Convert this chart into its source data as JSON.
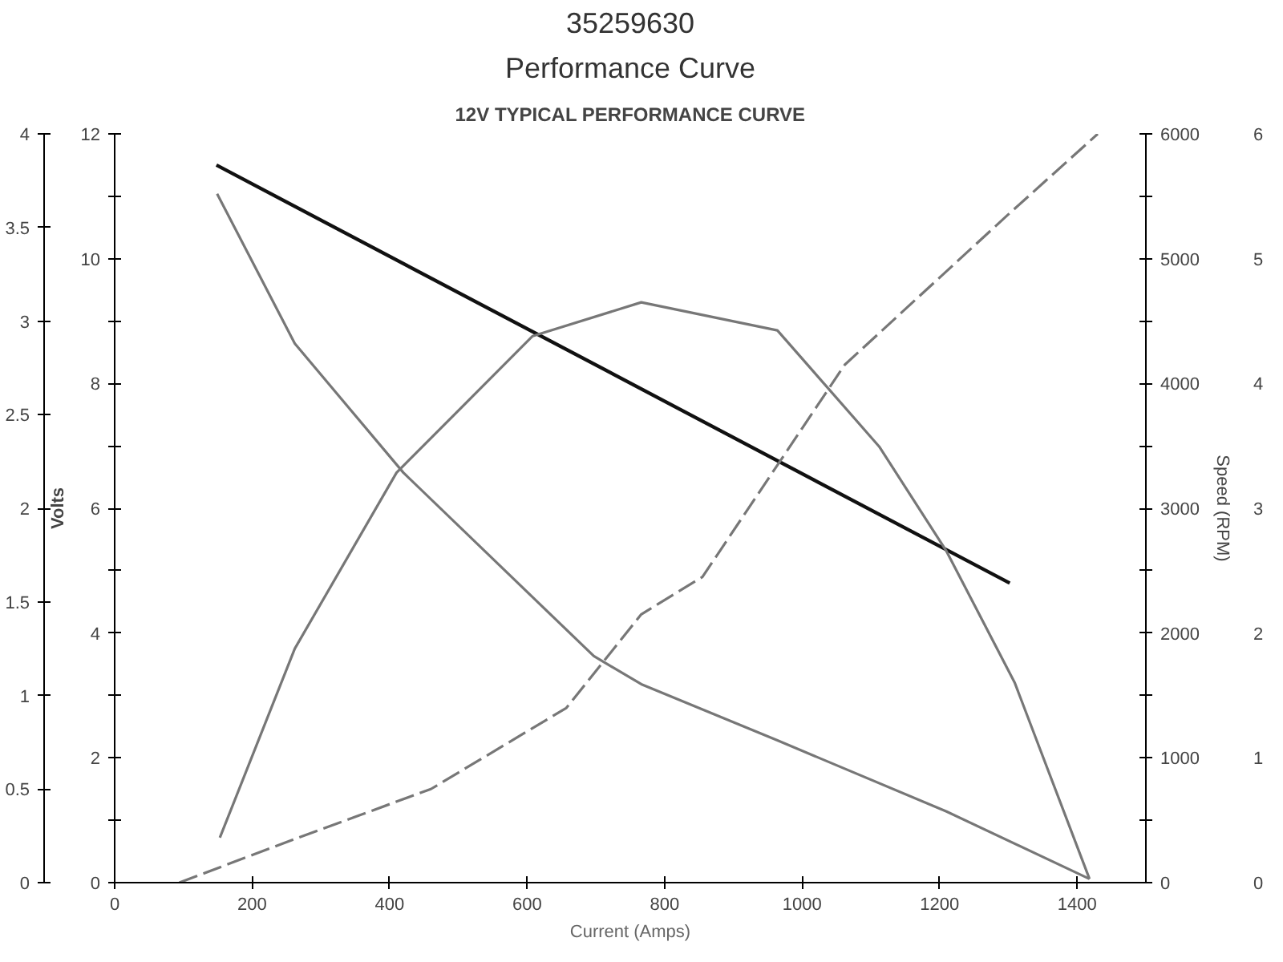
{
  "chart_data": {
    "type": "line",
    "title": "35259630",
    "subtitle": "Performance Curve",
    "annotations": [
      "12V TYPICAL PERFORMANCE CURVE",
      "0",
      "1",
      "2",
      "3",
      "4",
      "5",
      "6"
    ],
    "xlabel": "Current (Amps)",
    "ylabel": "Volts",
    "y2label": "Speed (RPM)",
    "xlim": [
      0,
      1500
    ],
    "xticks": [
      0,
      200,
      400,
      600,
      800,
      1000,
      1200,
      1400
    ],
    "ylim": [
      0,
      12
    ],
    "yticks": [
      0,
      {
        "value": 1,
        "label": null
      },
      2,
      {
        "value": 3,
        "label": null
      },
      4,
      {
        "value": 5,
        "label": null
      },
      6,
      {
        "value": 7,
        "label": null
      },
      8,
      {
        "value": 9,
        "label": null
      },
      10,
      {
        "value": 11,
        "label": null
      },
      12
    ],
    "y2lim": [
      0,
      6000
    ],
    "y2ticks": [
      0,
      {
        "value": 500,
        "label": null
      },
      1000,
      {
        "value": 1500,
        "label": null
      },
      2000,
      {
        "value": 2500,
        "label": null
      },
      3000,
      {
        "value": 3500,
        "label": null
      },
      4000,
      {
        "value": 4500,
        "label": null
      },
      5000,
      {
        "value": 5500,
        "label": null
      },
      6000
    ],
    "y3lim": [
      0,
      4
    ],
    "y3ticks": [
      0,
      0.5,
      1,
      1.5,
      2,
      2.5,
      3,
      3.5,
      4
    ],
    "grid": false,
    "marker": "none",
    "series": [
      {
        "color": "#111111",
        "axis": "y",
        "line_style": "solid",
        "x": [
          148,
          1302
        ],
        "values": [
          11.5,
          4.8
        ]
      },
      {
        "color": "#777777",
        "axis": "y3",
        "line_style": "solid",
        "x": [
          149,
          262,
          420,
          697,
          766,
          964,
          1210,
          1418
        ],
        "values": [
          3.68,
          2.88,
          2.19,
          1.21,
          1.06,
          0.76,
          0.38,
          0.02
        ]
      },
      {
        "color": "#777777",
        "axis": "y3",
        "line_style": "solid",
        "x": [
          153,
          262,
          410,
          608,
          766,
          964,
          1112,
          1210,
          1309,
          1418
        ],
        "values": [
          0.24,
          1.25,
          2.19,
          2.92,
          3.1,
          2.95,
          2.33,
          1.77,
          1.07,
          0.02
        ]
      },
      {
        "color": "#777777",
        "axis": "y2",
        "line_style": "dashed",
        "x": [
          94,
          262,
          460,
          657,
          766,
          855,
          1062,
          1299,
          1430
        ],
        "values": [
          0,
          350,
          750,
          1400,
          2150,
          2450,
          4150,
          5350,
          6000
        ]
      }
    ]
  }
}
